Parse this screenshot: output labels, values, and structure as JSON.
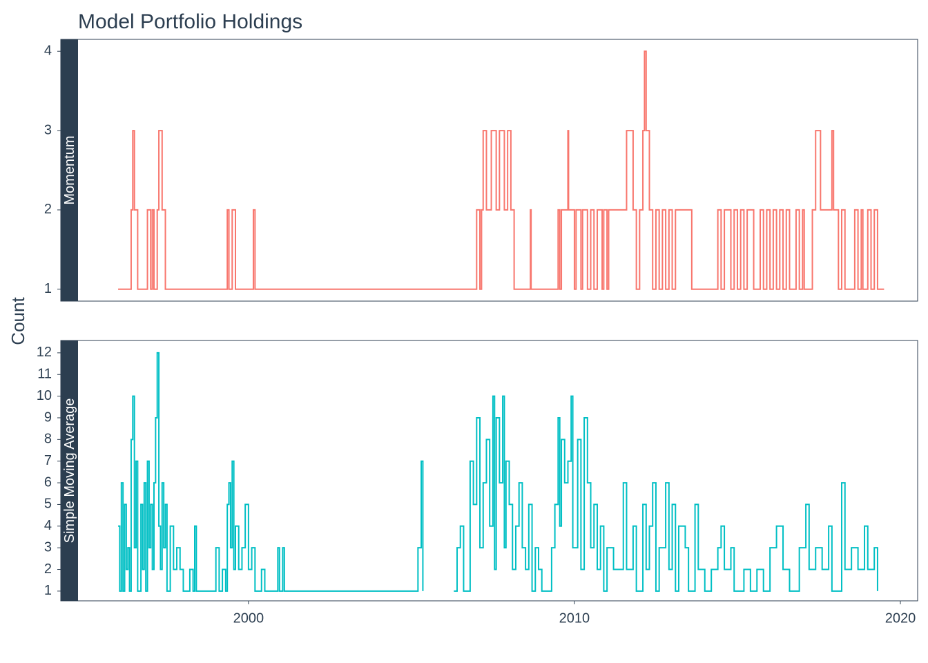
{
  "chart_data": [
    {
      "type": "line",
      "title": "Model Portfolio Holdings",
      "ylabel": "Count",
      "x": [
        1996.0,
        1996.4,
        1996.45,
        1996.5,
        1996.6,
        1996.9,
        1997.0,
        1997.05,
        1997.1,
        1997.2,
        1997.25,
        1997.35,
        1997.45,
        1999.35,
        1999.4,
        1999.5,
        1999.6,
        2000.15,
        2000.2,
        2007.0,
        2007.1,
        2007.15,
        2007.2,
        2007.3,
        2007.45,
        2007.6,
        2007.7,
        2007.85,
        2007.95,
        2008.05,
        2008.15,
        2008.65,
        2008.67,
        2009.5,
        2009.55,
        2009.6,
        2009.8,
        2009.82,
        2010.0,
        2010.05,
        2010.2,
        2010.25,
        2010.4,
        2010.5,
        2010.6,
        2010.7,
        2010.85,
        2010.9,
        2011.0,
        2011.05,
        2011.6,
        2011.8,
        2011.9,
        2012.0,
        2012.1,
        2012.15,
        2012.2,
        2012.3,
        2012.4,
        2012.5,
        2012.6,
        2012.7,
        2012.8,
        2012.9,
        2013.0,
        2013.1,
        2013.6,
        2014.4,
        2014.5,
        2014.6,
        2014.8,
        2014.9,
        2015.0,
        2015.1,
        2015.2,
        2015.3,
        2015.5,
        2015.7,
        2015.8,
        2015.9,
        2016.0,
        2016.1,
        2016.2,
        2016.3,
        2016.4,
        2016.5,
        2016.6,
        2016.8,
        2016.9,
        2017.0,
        2017.05,
        2017.3,
        2017.4,
        2017.55,
        2017.9,
        2017.95,
        2018.1,
        2018.2,
        2018.3,
        2018.6,
        2018.7,
        2018.8,
        2018.85,
        2019.0,
        2019.1,
        2019.2,
        2019.3,
        2019.5
      ],
      "series": [
        {
          "name": "Momentum",
          "color": "#f8766d",
          "values": [
            1,
            2,
            3,
            2,
            1,
            2,
            1,
            2,
            1,
            2,
            3,
            2,
            1,
            2,
            1,
            2,
            1,
            2,
            1,
            2,
            1,
            2,
            3,
            2,
            3,
            2,
            3,
            2,
            3,
            2,
            1,
            2,
            1,
            2,
            1,
            2,
            3,
            2,
            1,
            2,
            1,
            2,
            1,
            2,
            1,
            2,
            1,
            2,
            1,
            2,
            3,
            2,
            1,
            2,
            3,
            4,
            3,
            2,
            1,
            2,
            1,
            2,
            1,
            2,
            1,
            2,
            1,
            2,
            1,
            2,
            1,
            2,
            1,
            2,
            1,
            2,
            1,
            2,
            1,
            2,
            1,
            2,
            1,
            2,
            1,
            2,
            1,
            2,
            1,
            2,
            1,
            2,
            3,
            2,
            3,
            2,
            1,
            2,
            1,
            2,
            1,
            2,
            1,
            2,
            1,
            2,
            1,
            1
          ]
        }
      ],
      "xlim": [
        1994.77,
        2020.53
      ],
      "ylim": [
        0.85,
        4.15
      ],
      "yticks": [
        1,
        2,
        3,
        4
      ]
    },
    {
      "type": "line",
      "x": [
        1996.0,
        1996.05,
        1996.1,
        1996.15,
        1996.2,
        1996.25,
        1996.3,
        1996.35,
        1996.4,
        1996.45,
        1996.5,
        1996.55,
        1996.6,
        1996.7,
        1996.75,
        1996.8,
        1996.85,
        1996.9,
        1996.95,
        1997.0,
        1997.05,
        1997.1,
        1997.15,
        1997.2,
        1997.25,
        1997.3,
        1997.35,
        1997.4,
        1997.45,
        1997.5,
        1997.6,
        1997.7,
        1997.8,
        1997.9,
        1998.0,
        1998.2,
        1998.3,
        1998.35,
        1998.4,
        1999.0,
        1999.1,
        1999.2,
        1999.3,
        1999.35,
        1999.4,
        1999.45,
        1999.5,
        1999.55,
        1999.6,
        1999.7,
        1999.8,
        1999.9,
        2000.0,
        2000.1,
        2000.2,
        2000.4,
        2000.5,
        2000.9,
        2000.95,
        2001.05,
        2001.1,
        2005.2,
        2005.3,
        2005.35,
        2005.4,
        2006.3,
        2006.4,
        2006.5,
        2006.6,
        2006.8,
        2006.9,
        2007.0,
        2007.1,
        2007.2,
        2007.3,
        2007.4,
        2007.5,
        2007.55,
        2007.6,
        2007.7,
        2007.8,
        2007.85,
        2007.9,
        2008.0,
        2008.1,
        2008.2,
        2008.3,
        2008.4,
        2008.5,
        2008.6,
        2008.7,
        2008.8,
        2008.9,
        2009.0,
        2009.3,
        2009.4,
        2009.5,
        2009.55,
        2009.6,
        2009.7,
        2009.8,
        2009.9,
        2009.95,
        2010.1,
        2010.2,
        2010.3,
        2010.4,
        2010.5,
        2010.6,
        2010.7,
        2010.8,
        2010.9,
        2011.0,
        2011.2,
        2011.5,
        2011.6,
        2011.8,
        2011.9,
        2012.1,
        2012.2,
        2012.3,
        2012.4,
        2012.5,
        2012.6,
        2012.8,
        2012.9,
        2013.0,
        2013.1,
        2013.2,
        2013.4,
        2013.5,
        2013.7,
        2013.8,
        2014.0,
        2014.2,
        2014.4,
        2014.5,
        2014.6,
        2014.8,
        2014.9,
        2015.2,
        2015.4,
        2015.6,
        2015.8,
        2016.0,
        2016.2,
        2016.4,
        2016.6,
        2016.9,
        2017.1,
        2017.2,
        2017.4,
        2017.6,
        2017.8,
        2017.9,
        2018.2,
        2018.3,
        2018.5,
        2018.7,
        2018.9,
        2019.0,
        2019.2,
        2019.3
      ],
      "series": [
        {
          "name": "Simple Moving Average",
          "color": "#00bfc4",
          "values": [
            4,
            1,
            6,
            1,
            5,
            2,
            3,
            1,
            8,
            10,
            3,
            7,
            1,
            5,
            2,
            6,
            1,
            7,
            3,
            5,
            2,
            6,
            9,
            12,
            4,
            2,
            6,
            3,
            5,
            1,
            4,
            2,
            3,
            2,
            1,
            2,
            1,
            4,
            1,
            3,
            1,
            2,
            1,
            5,
            6,
            3,
            7,
            2,
            4,
            2,
            3,
            5,
            2,
            3,
            1,
            2,
            1,
            3,
            1,
            3,
            1,
            3,
            7,
            1,
            null,
            1,
            3,
            4,
            1,
            7,
            5,
            9,
            3,
            6,
            8,
            4,
            10,
            2,
            9,
            6,
            10,
            3,
            7,
            5,
            2,
            4,
            6,
            3,
            2,
            5,
            1,
            3,
            2,
            1,
            3,
            5,
            9,
            4,
            8,
            6,
            7,
            10,
            3,
            8,
            2,
            9,
            6,
            3,
            5,
            2,
            4,
            1,
            3,
            2,
            6,
            2,
            4,
            1,
            5,
            2,
            4,
            6,
            1,
            3,
            6,
            2,
            5,
            1,
            4,
            3,
            1,
            5,
            2,
            1,
            2,
            3,
            4,
            2,
            3,
            1,
            2,
            1,
            2,
            1,
            3,
            4,
            2,
            1,
            3,
            5,
            2,
            3,
            2,
            4,
            1,
            6,
            2,
            3,
            2,
            4,
            2,
            3,
            1
          ]
        }
      ],
      "xlim": [
        1994.77,
        2020.53
      ],
      "xticks": [
        2000,
        2010,
        2020
      ],
      "ylim": [
        0.55,
        12.57
      ],
      "yticks": [
        1,
        2,
        3,
        4,
        5,
        6,
        7,
        8,
        9,
        10,
        11,
        12
      ]
    }
  ]
}
